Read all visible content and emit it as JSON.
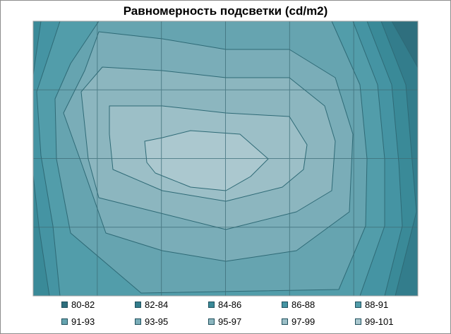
{
  "chart_data": {
    "type": "heatmap",
    "subtype": "contour",
    "title": "Равномерность подсветки (cd/m2)",
    "xlabel": "",
    "ylabel": "",
    "grid": true,
    "grid_columns": 6,
    "grid_rows": 4,
    "legend_position": "bottom",
    "levels": [
      {
        "label": "80-82",
        "min": 80,
        "max": 82,
        "color": "#2f6f7e"
      },
      {
        "label": "82-84",
        "min": 82,
        "max": 84,
        "color": "#337d8c"
      },
      {
        "label": "84-86",
        "min": 84,
        "max": 86,
        "color": "#3a8a98"
      },
      {
        "label": "86-88",
        "min": 86,
        "max": 88,
        "color": "#4594a3"
      },
      {
        "label": "88-91",
        "min": 88,
        "max": 91,
        "color": "#529daa"
      },
      {
        "label": "91-93",
        "min": 91,
        "max": 93,
        "color": "#66a4b0"
      },
      {
        "label": "93-95",
        "min": 93,
        "max": 95,
        "color": "#7aadb8"
      },
      {
        "label": "95-97",
        "min": 95,
        "max": 97,
        "color": "#8cb6bf"
      },
      {
        "label": "97-99",
        "min": 97,
        "max": 99,
        "color": "#9cbfc7"
      },
      {
        "label": "99-101",
        "min": 99,
        "max": 101,
        "color": "#abc8cf"
      }
    ]
  }
}
